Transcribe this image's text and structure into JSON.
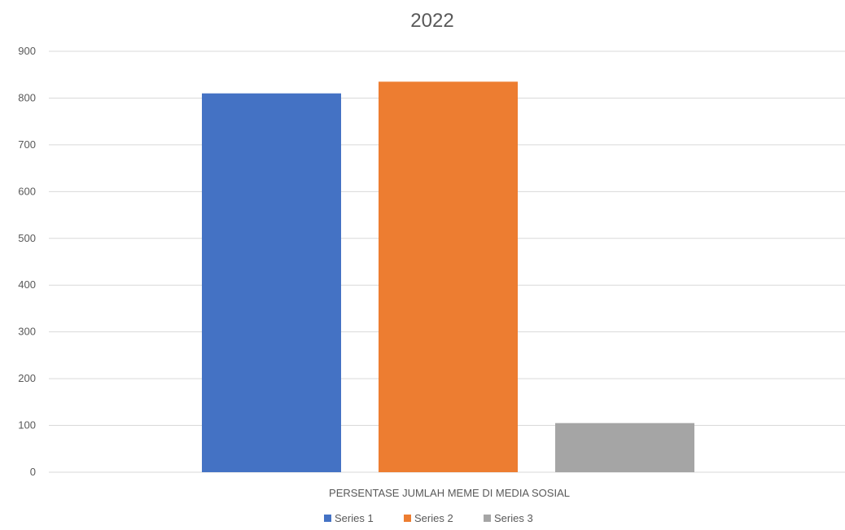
{
  "chart_data": {
    "type": "bar",
    "title": "2022",
    "categories": [
      "PERSENTASE JUMLAH MEME DI MEDIA SOSIAL"
    ],
    "series": [
      {
        "name": "Series 1",
        "values": [
          810
        ],
        "color": "#4472c4"
      },
      {
        "name": "Series 2",
        "values": [
          835
        ],
        "color": "#ed7d31"
      },
      {
        "name": "Series 3",
        "values": [
          105
        ],
        "color": "#a5a5a5"
      }
    ],
    "ylim": [
      0,
      900
    ],
    "yticks": [
      0,
      100,
      200,
      300,
      400,
      500,
      600,
      700,
      800,
      900
    ],
    "grid": true,
    "legend": "bottom"
  }
}
